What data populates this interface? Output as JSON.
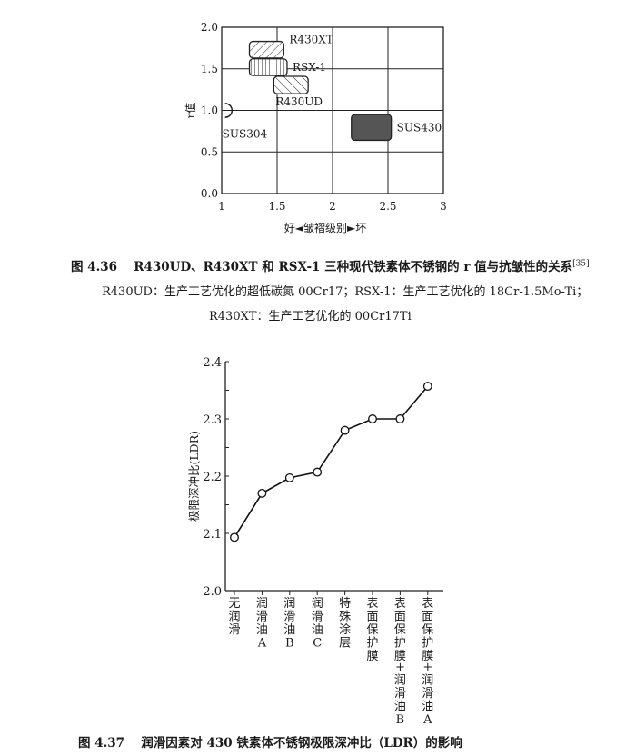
{
  "chart_data": [
    {
      "type": "scatter",
      "title": "",
      "xlabel": "好◄皱褶级别►坏",
      "ylabel": "r值",
      "xlim": [
        1,
        3
      ],
      "ylim": [
        0,
        2.0
      ],
      "xticks": [
        "1",
        "1.5",
        "2",
        "2.5",
        "3"
      ],
      "yticks": [
        "0.0",
        "0.5",
        "1.0",
        "1.5",
        "2.0"
      ],
      "grid": true,
      "regions": [
        {
          "label": "R430XT",
          "x": [
            1.25,
            1.56
          ],
          "y": [
            1.63,
            1.83
          ],
          "fill": "diagonal-hatch-down"
        },
        {
          "label": "RSX-1",
          "x": [
            1.25,
            1.59
          ],
          "y": [
            1.42,
            1.62
          ],
          "fill": "vertical-hatch"
        },
        {
          "label": "R430UD",
          "x": [
            1.47,
            1.78
          ],
          "y": [
            1.2,
            1.41
          ],
          "fill": "diagonal-hatch-up"
        },
        {
          "label": "SUS430",
          "x": [
            2.17,
            2.53
          ],
          "y": [
            0.64,
            0.95
          ],
          "fill": "#555555"
        },
        {
          "label": "SUS304",
          "x": [
            1.03,
            1.1
          ],
          "y": [
            0.93,
            1.07
          ],
          "fill": "arc"
        }
      ]
    },
    {
      "type": "line",
      "title": "",
      "ylabel": "极限深冲比(LDR)",
      "ylim": [
        2.0,
        2.4
      ],
      "yticks": [
        "2.0",
        "2.1",
        "2.2",
        "2.3",
        "2.4"
      ],
      "grid": false,
      "categories": [
        "无润滑",
        "润滑油A",
        "润滑油B",
        "润滑油C",
        "特殊涂层",
        "表面保护膜",
        "表面保护膜+润滑油B",
        "表面保护膜+润滑油A"
      ],
      "values": [
        2.093,
        2.17,
        2.197,
        2.207,
        2.28,
        2.3,
        2.3,
        2.357
      ]
    }
  ],
  "captions": {
    "fig436": "图 4.36　 R430UD、R430XT 和 RSX-1 三种现代铁素体不锈钢的 r 值与抗皱性的关系",
    "fig436_ref": "[35]",
    "fig436_line2": "R430UD：生产工艺优化的超低碳氮 00Cr17；RSX-1：生产工艺优化的 18Cr-1.5Mo-Ti；",
    "fig436_line3": "R430XT：生产工艺优化的 00Cr17Ti",
    "fig437": "图 4.37　 润滑因素对 430 铁素体不锈钢极限深冲比（LDR）的影响"
  }
}
